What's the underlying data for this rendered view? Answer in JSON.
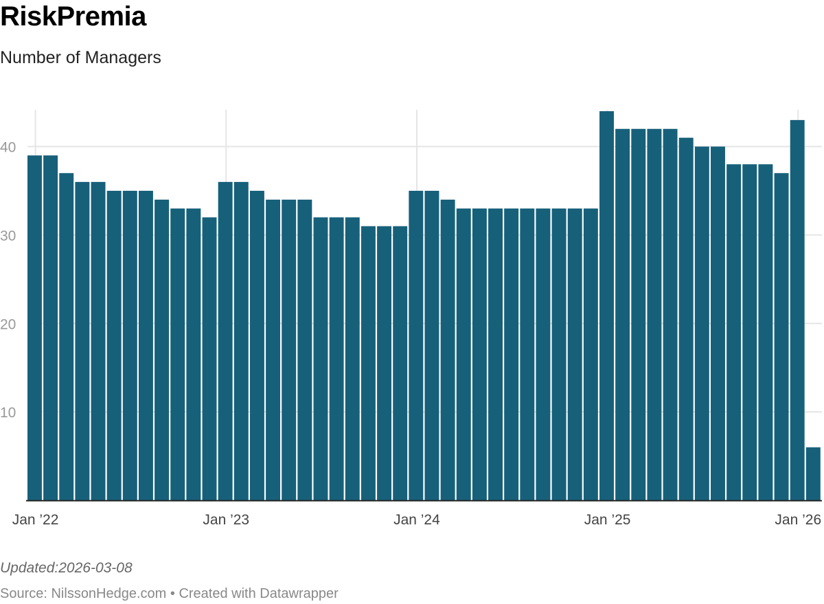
{
  "header": {
    "title": "RiskPremia",
    "subtitle": "Number of Managers"
  },
  "footer": {
    "updated": "Updated:2026-03-08",
    "source": "Source: NilssonHedge.com • Created with Datawrapper"
  },
  "colors": {
    "bar": "#17607a",
    "grid": "#e5e5e5",
    "baseline": "#222222"
  },
  "chart_data": {
    "type": "bar",
    "title": "RiskPremia",
    "subtitle": "Number of Managers",
    "xlabel": "",
    "ylabel": "",
    "ylim": [
      0,
      44
    ],
    "grid": true,
    "yticks": [
      10,
      20,
      30,
      40
    ],
    "xticks": [
      {
        "label": "Jan ’22",
        "index": 0
      },
      {
        "label": "Jan ’23",
        "index": 12
      },
      {
        "label": "Jan ’24",
        "index": 24
      },
      {
        "label": "Jan ’25",
        "index": 36
      },
      {
        "label": "Jan ’26",
        "index": 48
      }
    ],
    "categories": [
      "2022-01",
      "2022-02",
      "2022-03",
      "2022-04",
      "2022-05",
      "2022-06",
      "2022-07",
      "2022-08",
      "2022-09",
      "2022-10",
      "2022-11",
      "2022-12",
      "2023-01",
      "2023-02",
      "2023-03",
      "2023-04",
      "2023-05",
      "2023-06",
      "2023-07",
      "2023-08",
      "2023-09",
      "2023-10",
      "2023-11",
      "2023-12",
      "2024-01",
      "2024-02",
      "2024-03",
      "2024-04",
      "2024-05",
      "2024-06",
      "2024-07",
      "2024-08",
      "2024-09",
      "2024-10",
      "2024-11",
      "2024-12",
      "2025-01",
      "2025-02",
      "2025-03",
      "2025-04",
      "2025-05",
      "2025-06",
      "2025-07",
      "2025-08",
      "2025-09",
      "2025-10",
      "2025-11",
      "2025-12",
      "2026-01",
      "2026-02"
    ],
    "values": [
      39,
      39,
      37,
      36,
      36,
      35,
      35,
      35,
      34,
      33,
      33,
      32,
      36,
      36,
      35,
      34,
      34,
      34,
      32,
      32,
      32,
      31,
      31,
      31,
      35,
      35,
      34,
      33,
      33,
      33,
      33,
      33,
      33,
      33,
      33,
      33,
      44,
      42,
      42,
      42,
      42,
      41,
      40,
      40,
      38,
      38,
      38,
      37,
      43,
      6
    ]
  }
}
